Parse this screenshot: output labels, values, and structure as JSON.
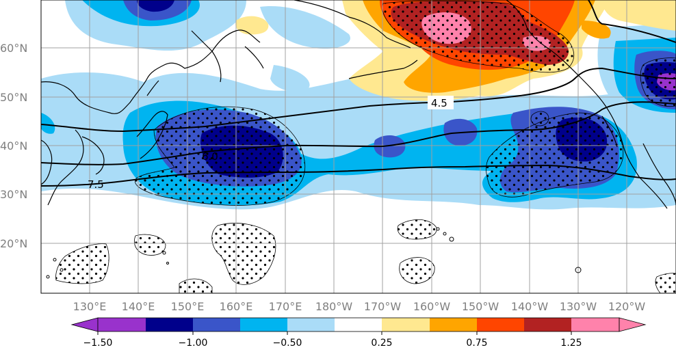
{
  "map": {
    "latitude_labels": [
      "60°N",
      "50°N",
      "40°N",
      "30°N",
      "20°N"
    ],
    "longitude_labels": [
      "130°E",
      "140°E",
      "150°E",
      "160°E",
      "170°E",
      "180°W",
      "170°W",
      "160°W",
      "150°W",
      "140°W",
      "130°W",
      "120°W"
    ],
    "contour_labels": [
      "4.5",
      "6.0",
      "7.5"
    ],
    "colorbar": {
      "tick_labels": [
        "−1.50",
        "−1.00",
        "−0.50",
        "0.25",
        "0.75",
        "1.25"
      ],
      "colors": [
        "#9932cc",
        "#00008b",
        "#3a55c9",
        "#00b4f0",
        "#aadcf7",
        "#ffffff",
        "#ffe890",
        "#ffa500",
        "#ff4500",
        "#b22222",
        "#ff82ab"
      ]
    },
    "stipple_meaning": "significance dots"
  }
}
